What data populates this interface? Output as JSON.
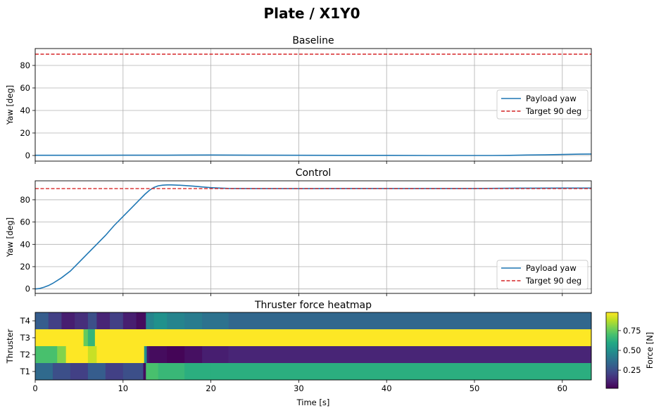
{
  "figure": {
    "title": "Plate / X1Y0"
  },
  "chart_data": [
    {
      "type": "line",
      "title": "Baseline",
      "xlabel": "",
      "ylabel": "Yaw [deg]",
      "xlim": [
        0,
        63.3
      ],
      "ylim": [
        -5,
        95
      ],
      "xticks": [
        0,
        10,
        20,
        30,
        40,
        50,
        60
      ],
      "yticks": [
        0,
        20,
        40,
        60,
        80
      ],
      "grid": true,
      "legend_position": "center-right",
      "series": [
        {
          "name": "Payload yaw",
          "style": "solid",
          "color": "#1f77b4",
          "x": [
            0,
            5,
            10,
            15,
            20,
            25,
            30,
            35,
            40,
            45,
            50,
            52,
            54,
            56,
            58,
            60,
            62,
            63.3
          ],
          "y": [
            0.2,
            0.2,
            0.3,
            0.3,
            0.4,
            0.3,
            0.2,
            0.1,
            0.1,
            0.0,
            0.0,
            0.0,
            0.1,
            0.4,
            0.6,
            0.9,
            1.2,
            1.3
          ]
        },
        {
          "name": "Target 90 deg",
          "style": "dashed",
          "color": "#d62728",
          "x": [
            0,
            63.3
          ],
          "y": [
            90,
            90
          ]
        }
      ]
    },
    {
      "type": "line",
      "title": "Control",
      "xlabel": "",
      "ylabel": "Yaw [deg]",
      "xlim": [
        0,
        63.3
      ],
      "ylim": [
        -4,
        97
      ],
      "xticks": [
        0,
        10,
        20,
        30,
        40,
        50,
        60
      ],
      "yticks": [
        0,
        20,
        40,
        60,
        80
      ],
      "grid": true,
      "legend_position": "lower-right",
      "series": [
        {
          "name": "Payload yaw",
          "style": "solid",
          "color": "#1f77b4",
          "x": [
            0,
            0.5,
            1,
            1.5,
            2,
            3,
            4,
            5,
            6,
            7,
            8,
            9,
            10,
            11,
            12,
            12.5,
            13,
            13.5,
            14,
            14.5,
            15,
            15.5,
            16,
            17,
            18,
            19,
            20,
            21,
            22,
            23,
            25,
            30,
            40,
            50,
            55,
            60,
            63.3
          ],
          "y": [
            0,
            0.4,
            1.5,
            3,
            5,
            10,
            16,
            24,
            32,
            40,
            48,
            57,
            65,
            73,
            81,
            85,
            88.5,
            91,
            92.5,
            93.1,
            93.3,
            93.3,
            93.2,
            92.8,
            92.2,
            91.5,
            90.9,
            90.5,
            90.2,
            90.1,
            90.0,
            90.0,
            90.1,
            90.1,
            90.4,
            90.5,
            90.5
          ]
        },
        {
          "name": "Target 90 deg",
          "style": "dashed",
          "color": "#d62728",
          "x": [
            0,
            63.3
          ],
          "y": [
            90,
            90
          ]
        }
      ]
    },
    {
      "type": "heatmap",
      "title": "Thruster force heatmap",
      "xlabel": "Time [s]",
      "ylabel": "Thruster",
      "xlim": [
        0,
        63.3
      ],
      "xticks": [
        0,
        10,
        20,
        30,
        40,
        50,
        60
      ],
      "colormap": "viridis",
      "colorbar": {
        "label": "Force [N]",
        "range": [
          0.02,
          0.98
        ],
        "ticks": [
          "0.25",
          "0.50",
          "0.75"
        ]
      },
      "rows": [
        {
          "name": "T4",
          "segments": [
            [
              0,
              1.5,
              0.3
            ],
            [
              1.5,
              3,
              0.2
            ],
            [
              3,
              4.5,
              0.1
            ],
            [
              4.5,
              6,
              0.15
            ],
            [
              6,
              7,
              0.25
            ],
            [
              7,
              8.5,
              0.12
            ],
            [
              8.5,
              10,
              0.2
            ],
            [
              10,
              11.5,
              0.1
            ],
            [
              11.5,
              12.6,
              0.05
            ],
            [
              12.6,
              13.5,
              0.45
            ],
            [
              13.5,
              15,
              0.5
            ],
            [
              15,
              17,
              0.45
            ],
            [
              17,
              19,
              0.42
            ],
            [
              19,
              22,
              0.38
            ],
            [
              22,
              63.3,
              0.34
            ]
          ]
        },
        {
          "name": "T3",
          "segments": [
            [
              0,
              5.5,
              0.98
            ],
            [
              5.5,
              6,
              0.75
            ],
            [
              6,
              6.8,
              0.65
            ],
            [
              6.8,
              63.3,
              0.98
            ]
          ]
        },
        {
          "name": "T2",
          "segments": [
            [
              0,
              2.5,
              0.7
            ],
            [
              2.5,
              3.5,
              0.8
            ],
            [
              3.5,
              6,
              0.98
            ],
            [
              6,
              7,
              0.9
            ],
            [
              7,
              12.4,
              0.98
            ],
            [
              12.4,
              12.7,
              0.5
            ],
            [
              12.7,
              13,
              0.08
            ],
            [
              13,
              15,
              0.05
            ],
            [
              15,
              17,
              0.03
            ],
            [
              17,
              19,
              0.06
            ],
            [
              19,
              22,
              0.1
            ],
            [
              22,
              63.3,
              0.12
            ]
          ]
        },
        {
          "name": "T1",
          "segments": [
            [
              0,
              2,
              0.35
            ],
            [
              2,
              4,
              0.25
            ],
            [
              4,
              6,
              0.2
            ],
            [
              6,
              8,
              0.3
            ],
            [
              8,
              10,
              0.2
            ],
            [
              10,
              12.3,
              0.25
            ],
            [
              12.3,
              12.6,
              0.05
            ],
            [
              12.6,
              14,
              0.7
            ],
            [
              14,
              17,
              0.66
            ],
            [
              17,
              20,
              0.62
            ],
            [
              20,
              63.3,
              0.62
            ]
          ]
        }
      ]
    }
  ]
}
